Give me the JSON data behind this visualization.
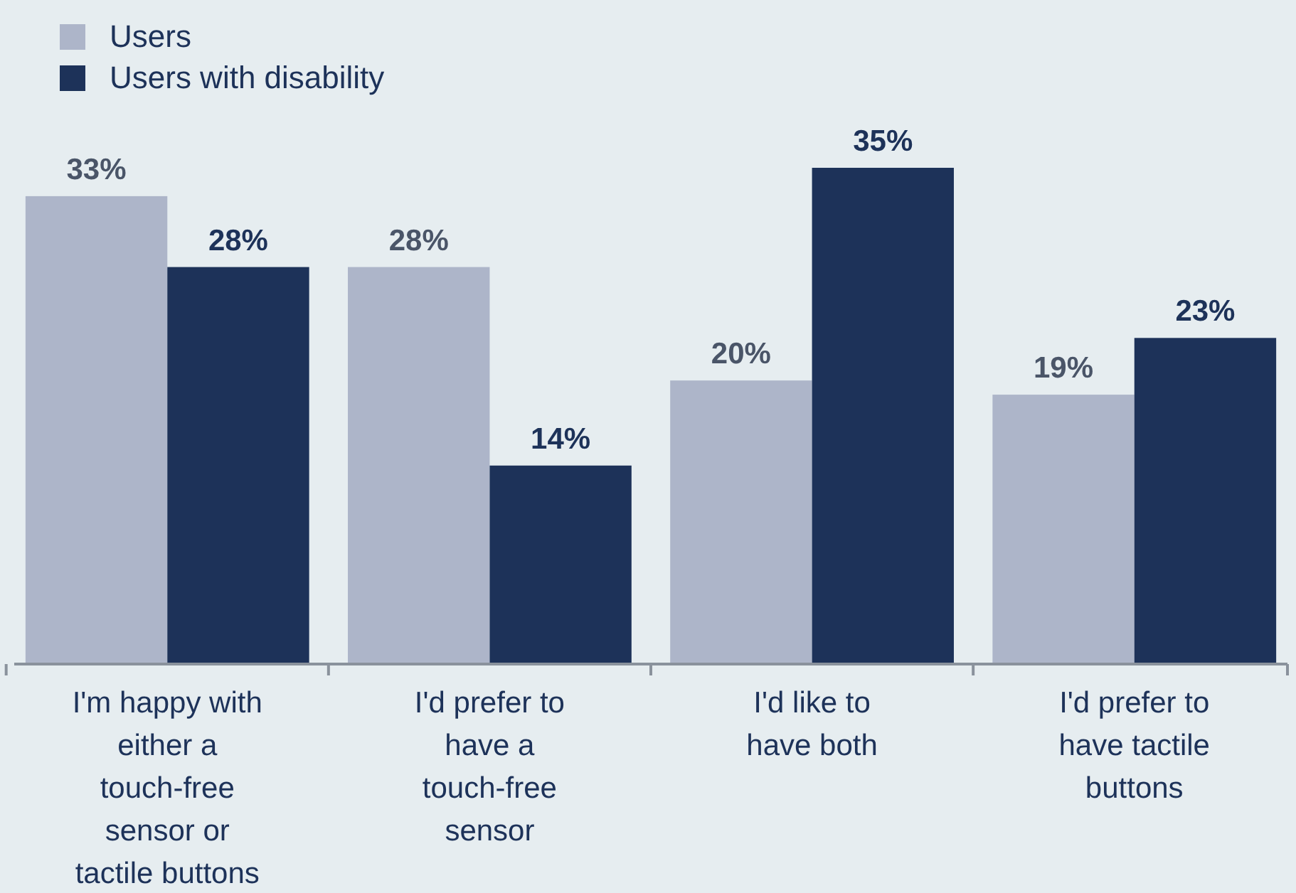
{
  "chart_data": {
    "type": "bar",
    "categories": [
      "I'm happy with either a touch-free sensor or tactile buttons",
      "I'd prefer to have a touch-free sensor",
      "I'd like to have both",
      "I'd prefer to have tactile buttons"
    ],
    "series": [
      {
        "name": "Users",
        "color": "#adb5c9",
        "values": [
          33,
          28,
          20,
          19
        ],
        "value_labels": [
          "33%",
          "28%",
          "20%",
          "19%"
        ]
      },
      {
        "name": "Users with disability",
        "color": "#1d3259",
        "values": [
          28,
          14,
          35,
          23
        ],
        "value_labels": [
          "28%",
          "14%",
          "35%",
          "23%"
        ]
      }
    ],
    "legend": "top left"
  }
}
